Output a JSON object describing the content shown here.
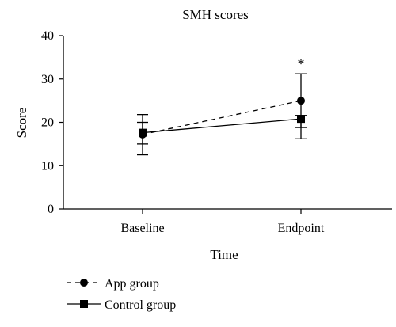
{
  "chart_data": {
    "type": "line",
    "title": "SMH scores",
    "xlabel": "Time",
    "ylabel": "Score",
    "categories": [
      "Baseline",
      "Endpoint"
    ],
    "ylim": [
      0,
      40
    ],
    "yticks": [
      "0",
      "10",
      "20",
      "30",
      "40"
    ],
    "grid": false,
    "legend_position": "bottom-left",
    "series": [
      {
        "name": "App group",
        "marker": "circle",
        "line_style": "dashed",
        "values": [
          17.2,
          25.0
        ],
        "error_low": [
          12.5,
          18.8
        ],
        "error_high": [
          21.8,
          31.2
        ]
      },
      {
        "name": "Control group",
        "marker": "square",
        "line_style": "solid",
        "values": [
          17.6,
          20.8
        ],
        "error_low": [
          15.0,
          16.2
        ],
        "error_high": [
          20.0,
          21.6
        ]
      }
    ],
    "annotations": [
      {
        "text": "*",
        "category": "Endpoint",
        "value": 33.5
      }
    ]
  },
  "colors": {
    "ink": "#000000",
    "background": "#ffffff"
  }
}
